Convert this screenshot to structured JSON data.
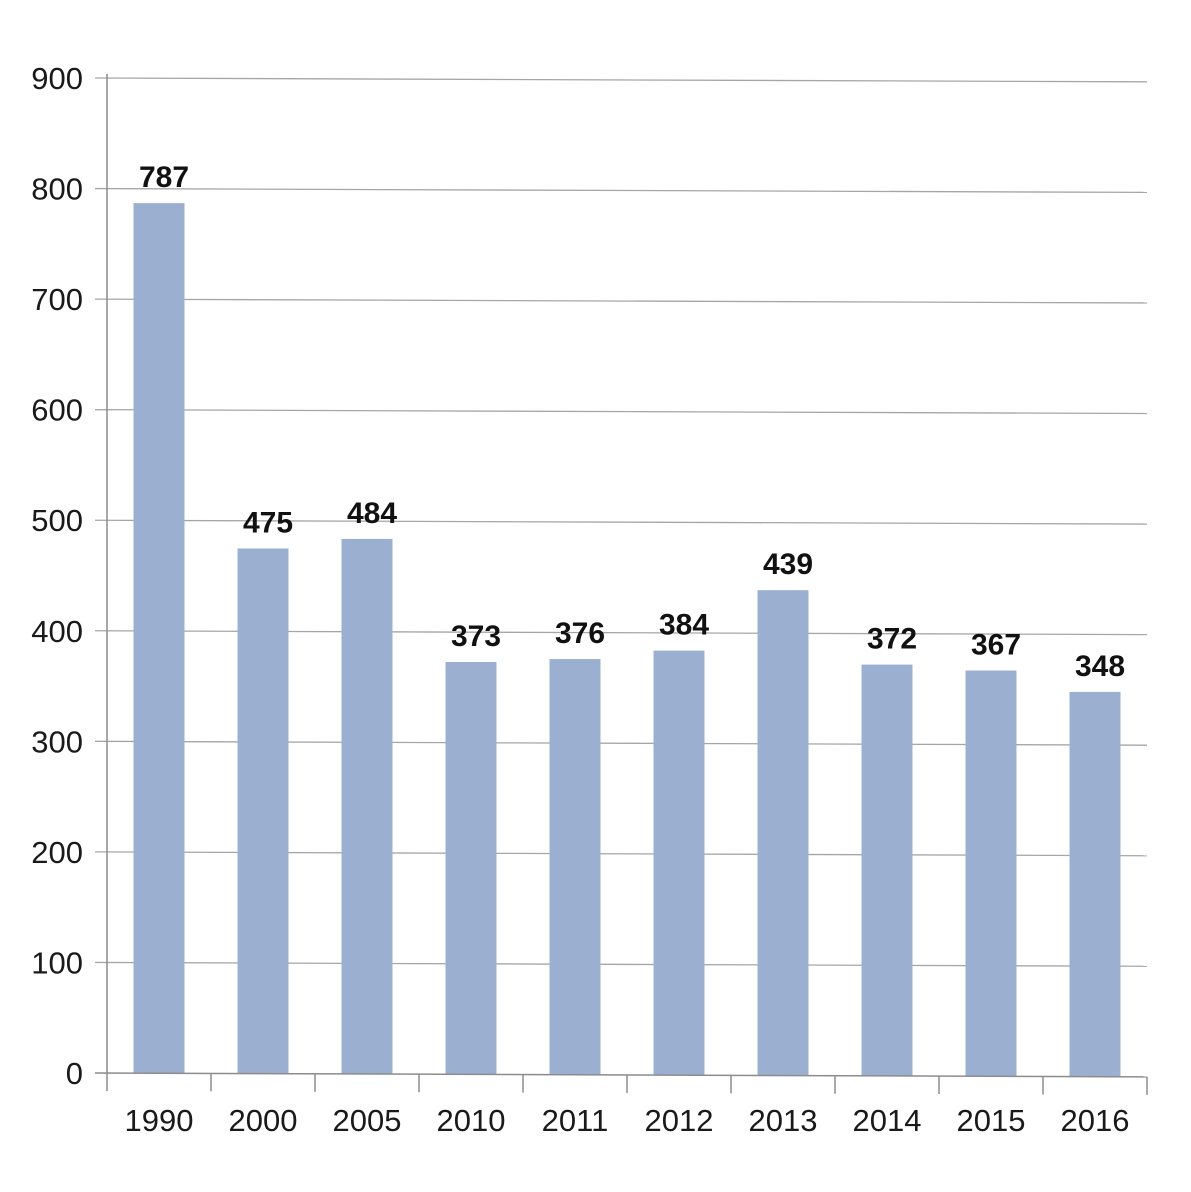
{
  "chart_data": {
    "type": "bar",
    "title": "",
    "xlabel": "",
    "ylabel": "",
    "categories": [
      "1990",
      "2000",
      "2005",
      "2010",
      "2011",
      "2012",
      "2013",
      "2014",
      "2015",
      "2016"
    ],
    "values": [
      787,
      475,
      484,
      373,
      376,
      384,
      439,
      372,
      367,
      348
    ],
    "data_labels": [
      "787",
      "475",
      "484",
      "373",
      "376",
      "384",
      "439",
      "372",
      "367",
      "348"
    ],
    "ylim": [
      0,
      900
    ],
    "yticks": [
      0,
      100,
      200,
      300,
      400,
      500,
      600,
      700,
      800,
      900
    ],
    "ytick_labels": [
      "0",
      "100",
      "200",
      "300",
      "400",
      "500",
      "600",
      "700",
      "800",
      "900"
    ],
    "grid": true,
    "legend": "none",
    "bar_color": "#9bb0d1",
    "grid_color": "#a6a6a6"
  }
}
